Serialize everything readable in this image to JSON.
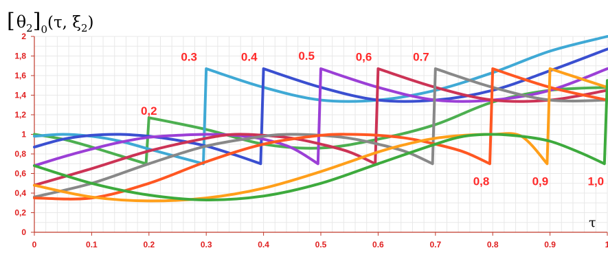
{
  "chart_data": {
    "type": "line",
    "title_parts": {
      "bracket_left": "[",
      "theta": "θ",
      "theta_sub": "2",
      "bracket_right": "]",
      "outer_sub": "0",
      "args_open": "(τ, ξ",
      "args_sub": "2",
      "args_close": ")"
    },
    "xlabel": "τ",
    "ylabel": "",
    "xlim": [
      0,
      1
    ],
    "ylim": [
      0,
      2
    ],
    "x_ticks": [
      "0",
      "0.1",
      "0.2",
      "0.3",
      "0.4",
      "0.5",
      "0.6",
      "0.7",
      "0.8",
      "0.9",
      "1"
    ],
    "y_ticks": [
      "0",
      "0,2",
      "0,4",
      "0,6",
      "0,8",
      "1",
      "1,2",
      "1,4",
      "1,6",
      "1,8",
      "2"
    ],
    "grid": true,
    "series": [
      {
        "color": "#4caf50",
        "switch_label": "0,2",
        "x": [
          0,
          0.05,
          0.1,
          0.15,
          0.195,
          0.2,
          0.3,
          0.4,
          0.5,
          0.6,
          0.7,
          0.8,
          0.9,
          1.0
        ],
        "y": [
          1.0,
          0.95,
          0.87,
          0.78,
          0.7,
          1.17,
          1.05,
          0.9,
          0.86,
          0.95,
          1.1,
          1.33,
          1.45,
          1.48
        ]
      },
      {
        "color": "#3fa9d5",
        "switch_label": "0.3",
        "x": [
          0,
          0.05,
          0.1,
          0.15,
          0.2,
          0.25,
          0.295,
          0.3,
          0.4,
          0.5,
          0.6,
          0.7,
          0.8,
          0.9,
          1.0
        ],
        "y": [
          0.98,
          1.0,
          0.98,
          0.93,
          0.85,
          0.77,
          0.7,
          1.67,
          1.48,
          1.35,
          1.35,
          1.45,
          1.63,
          1.85,
          2.0
        ]
      },
      {
        "color": "#3a4fd0",
        "switch_label": "0.4",
        "x": [
          0,
          0.05,
          0.1,
          0.15,
          0.2,
          0.25,
          0.3,
          0.35,
          0.395,
          0.4,
          0.5,
          0.6,
          0.7,
          0.8,
          0.9,
          1.0
        ],
        "y": [
          0.87,
          0.95,
          0.99,
          1.0,
          0.98,
          0.94,
          0.88,
          0.79,
          0.7,
          1.67,
          1.48,
          1.35,
          1.35,
          1.45,
          1.65,
          1.87
        ]
      },
      {
        "color": "#9b3fd6",
        "switch_label": "0.5",
        "x": [
          0,
          0.05,
          0.1,
          0.15,
          0.2,
          0.25,
          0.3,
          0.35,
          0.4,
          0.45,
          0.495,
          0.5,
          0.6,
          0.7,
          0.8,
          0.9,
          1.0
        ],
        "y": [
          0.68,
          0.77,
          0.85,
          0.92,
          0.97,
          0.99,
          1.0,
          0.99,
          0.95,
          0.86,
          0.7,
          1.67,
          1.48,
          1.35,
          1.35,
          1.45,
          1.67
        ]
      },
      {
        "color": "#cc3355",
        "switch_label": "0,6",
        "x": [
          0,
          0.1,
          0.2,
          0.3,
          0.35,
          0.4,
          0.45,
          0.5,
          0.55,
          0.595,
          0.6,
          0.7,
          0.8,
          0.9,
          1.0
        ],
        "y": [
          0.48,
          0.65,
          0.83,
          0.96,
          1.0,
          0.99,
          0.96,
          0.9,
          0.82,
          0.7,
          1.67,
          1.48,
          1.35,
          1.35,
          1.45
        ]
      },
      {
        "color": "#888888",
        "switch_label": "0.7",
        "x": [
          0,
          0.1,
          0.2,
          0.3,
          0.4,
          0.45,
          0.5,
          0.55,
          0.6,
          0.65,
          0.695,
          0.7,
          0.8,
          0.9,
          1.0
        ],
        "y": [
          0.36,
          0.5,
          0.7,
          0.88,
          0.98,
          1.0,
          0.99,
          0.96,
          0.9,
          0.82,
          0.7,
          1.67,
          1.48,
          1.35,
          1.35
        ]
      },
      {
        "color": "#ff5722",
        "switch_label": "0,8",
        "x": [
          0,
          0.1,
          0.2,
          0.3,
          0.4,
          0.5,
          0.55,
          0.6,
          0.65,
          0.7,
          0.75,
          0.795,
          0.8,
          0.9,
          1.0
        ],
        "y": [
          0.35,
          0.35,
          0.5,
          0.72,
          0.9,
          0.99,
          1.0,
          0.99,
          0.96,
          0.9,
          0.82,
          0.7,
          1.67,
          1.48,
          1.35
        ]
      },
      {
        "color": "#ff9f1a",
        "switch_label": "0,9",
        "x": [
          0,
          0.1,
          0.2,
          0.3,
          0.4,
          0.5,
          0.6,
          0.65,
          0.7,
          0.75,
          0.8,
          0.85,
          0.895,
          0.9,
          1.0
        ],
        "y": [
          0.48,
          0.36,
          0.32,
          0.35,
          0.45,
          0.62,
          0.82,
          0.9,
          0.96,
          0.99,
          1.0,
          0.98,
          0.7,
          1.67,
          1.48
        ]
      },
      {
        "color": "#3daa3d",
        "switch_label": "1,0",
        "x": [
          0,
          0.1,
          0.2,
          0.3,
          0.4,
          0.5,
          0.6,
          0.7,
          0.75,
          0.8,
          0.85,
          0.9,
          0.95,
          0.995,
          1.0
        ],
        "y": [
          0.68,
          0.5,
          0.38,
          0.33,
          0.37,
          0.5,
          0.7,
          0.9,
          0.98,
          1.0,
          0.98,
          0.93,
          0.82,
          0.7,
          1.55
        ]
      }
    ],
    "switch_label_points": [
      {
        "text": "0,2",
        "x": 0.2,
        "y": 1.2,
        "pos": "above"
      },
      {
        "text": "0.3",
        "x": 0.27,
        "y": 1.75,
        "pos": "above"
      },
      {
        "text": "0.4",
        "x": 0.375,
        "y": 1.75,
        "pos": "above"
      },
      {
        "text": "0.5",
        "x": 0.475,
        "y": 1.76,
        "pos": "above"
      },
      {
        "text": "0,6",
        "x": 0.575,
        "y": 1.75,
        "pos": "above"
      },
      {
        "text": "0.7",
        "x": 0.675,
        "y": 1.75,
        "pos": "above"
      },
      {
        "text": "0,8",
        "x": 0.78,
        "y": 0.58,
        "pos": "below"
      },
      {
        "text": "0,9",
        "x": 0.883,
        "y": 0.58,
        "pos": "below"
      },
      {
        "text": "1,0",
        "x": 0.98,
        "y": 0.58,
        "pos": "below"
      }
    ]
  }
}
